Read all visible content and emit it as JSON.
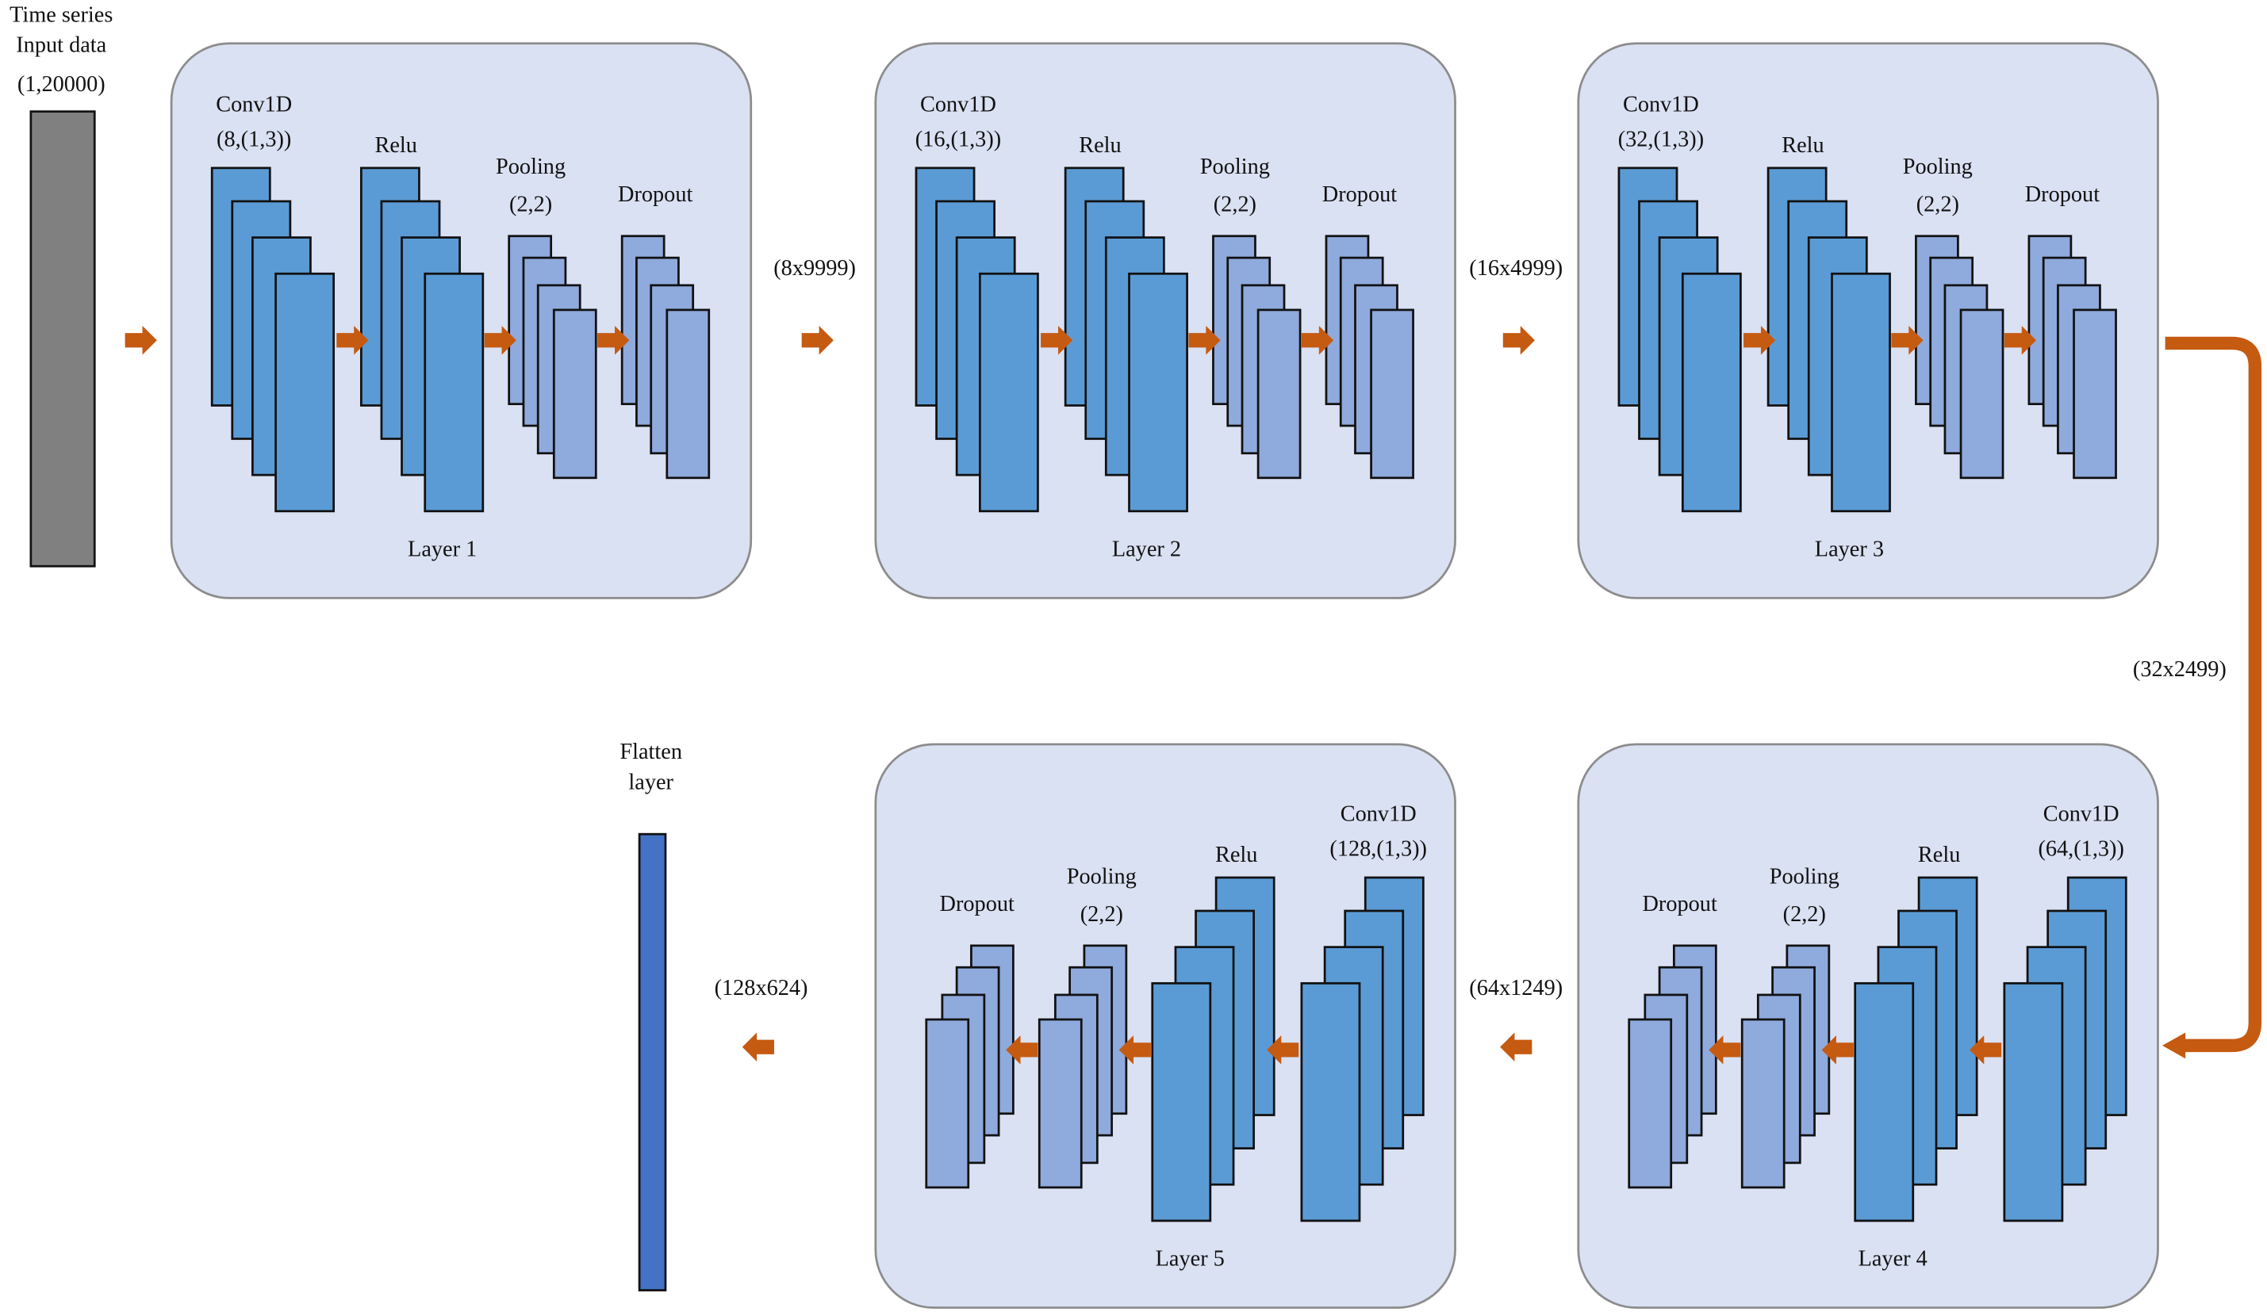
{
  "input": {
    "line1": "Time series",
    "line2": "Input data",
    "shape": "(1,20000)"
  },
  "layers": [
    {
      "name": "Layer 1",
      "conv": "Conv1D",
      "conv_params": "(8,(1,3))",
      "relu": "Relu",
      "pooling": "Pooling",
      "pooling_params": "(2,2)",
      "dropout": "Dropout"
    },
    {
      "name": "Layer 2",
      "conv": "Conv1D",
      "conv_params": "(16,(1,3))",
      "relu": "Relu",
      "pooling": "Pooling",
      "pooling_params": "(2,2)",
      "dropout": "Dropout"
    },
    {
      "name": "Layer 3",
      "conv": "Conv1D",
      "conv_params": "(32,(1,3))",
      "relu": "Relu",
      "pooling": "Pooling",
      "pooling_params": "(2,2)",
      "dropout": "Dropout"
    },
    {
      "name": "Layer 4",
      "conv": "Conv1D",
      "conv_params": "(64,(1,3))",
      "relu": "Relu",
      "pooling": "Pooling",
      "pooling_params": "(2,2)",
      "dropout": "Dropout"
    },
    {
      "name": "Layer 5",
      "conv": "Conv1D",
      "conv_params": "(128,(1,3))",
      "relu": "Relu",
      "pooling": "Pooling",
      "pooling_params": "(2,2)",
      "dropout": "Dropout"
    }
  ],
  "shapes": [
    "(8x9999)",
    "(16x4999)",
    "(32x2499)",
    "(64x1249)",
    "(128x624)"
  ],
  "flatten": {
    "line1": "Flatten",
    "line2": "layer"
  },
  "colors": {
    "layer_box": "#dae1f3",
    "layer_border": "#8c8c8c",
    "conv_relu": "#5b9bd5",
    "pool_dropout": "#8faadc",
    "arrow": "#c55a11",
    "input": "#808080",
    "flatten": "#4472c4"
  }
}
